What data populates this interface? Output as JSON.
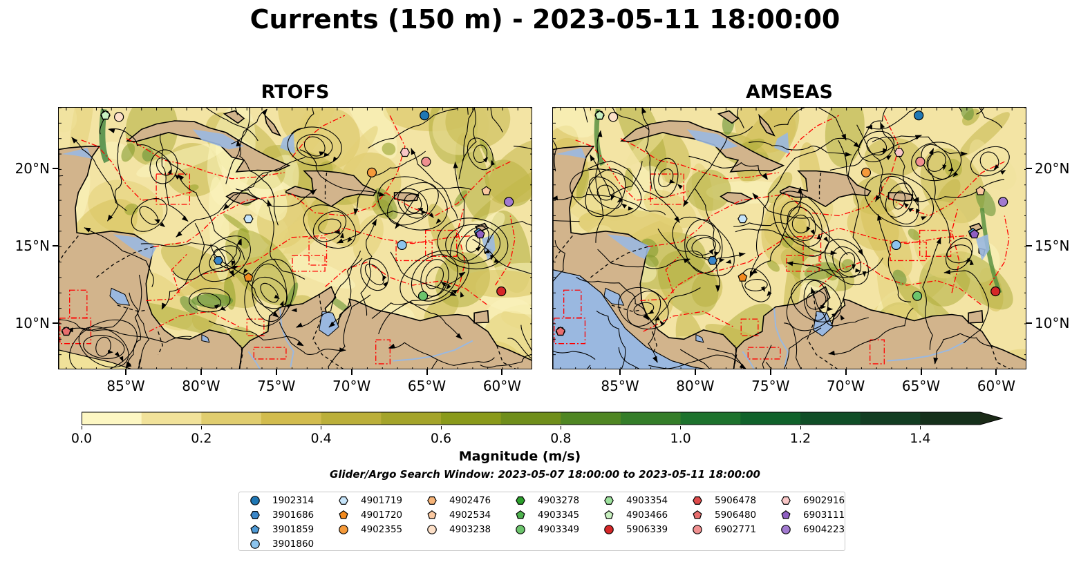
{
  "title": "Currents (150 m) - 2023-05-11 18:00:00",
  "panels": [
    {
      "title": "RTOFS"
    },
    {
      "title": "AMSEAS"
    }
  ],
  "map_extent": {
    "lon": [
      -89.5,
      -58.0
    ],
    "lat": [
      7.0,
      24.0
    ]
  },
  "x_ticks": [
    "85°W",
    "80°W",
    "75°W",
    "70°W",
    "65°W",
    "60°W"
  ],
  "x_tick_lons": [
    -85,
    -80,
    -75,
    -70,
    -65,
    -60
  ],
  "y_ticks": [
    "20°N",
    "15°N",
    "10°N"
  ],
  "y_tick_lats": [
    20,
    15,
    10
  ],
  "colorbar": {
    "title": "Magnitude (m/s)",
    "range": [
      0.0,
      1.5
    ],
    "step": 0.1,
    "extend": "max",
    "labels": [
      "0.0",
      "0.2",
      "0.4",
      "0.6",
      "0.8",
      "1.0",
      "1.2",
      "1.4"
    ],
    "label_values": [
      0.0,
      0.2,
      0.4,
      0.6,
      0.8,
      1.0,
      1.2,
      1.4
    ],
    "colors": [
      "#fdf7c3",
      "#f1e29a",
      "#e0cd6f",
      "#d2bc4e",
      "#bbaf3a",
      "#a4a42a",
      "#8a9a1b",
      "#6f8e1b",
      "#4f8623",
      "#347d29",
      "#1d722d",
      "#10622b",
      "#104e27",
      "#123d22",
      "#15301b",
      "#1b2a17"
    ]
  },
  "colors": {
    "ocean_low": "#fdf7c3",
    "land": "#d2b48c",
    "lake": "#9ab8e0",
    "track": "#ff0000"
  },
  "search_window": "Glider/Argo Search Window: 2023-05-07 18:00:00 to 2023-05-11 18:00:00",
  "legend": [
    {
      "id": "1902314",
      "marker": "circle",
      "color": "#1f77b4"
    },
    {
      "id": "3901686",
      "marker": "hexagon",
      "color": "#3a86c8"
    },
    {
      "id": "3901859",
      "marker": "pentagon",
      "color": "#4e9ad6"
    },
    {
      "id": "3901860",
      "marker": "circle",
      "color": "#8cc4ee"
    },
    {
      "id": "4901719",
      "marker": "hexagon",
      "color": "#c6e5fb"
    },
    {
      "id": "4901720",
      "marker": "pentagon",
      "color": "#f28a1e"
    },
    {
      "id": "4902355",
      "marker": "circle",
      "color": "#f59a3a"
    },
    {
      "id": "4902476",
      "marker": "hexagon",
      "color": "#f7b478"
    },
    {
      "id": "4902534",
      "marker": "pentagon",
      "color": "#fac8a0"
    },
    {
      "id": "4903238",
      "marker": "circle",
      "color": "#fde0c8"
    },
    {
      "id": "4903278",
      "marker": "hexagon",
      "color": "#2ca02c"
    },
    {
      "id": "4903345",
      "marker": "pentagon",
      "color": "#4fb34f"
    },
    {
      "id": "4903349",
      "marker": "circle",
      "color": "#6cc46c"
    },
    {
      "id": "4903354",
      "marker": "hexagon",
      "color": "#9ee29e"
    },
    {
      "id": "4903466",
      "marker": "pentagon",
      "color": "#c8f0c0"
    },
    {
      "id": "5906339",
      "marker": "circle",
      "color": "#d62728"
    },
    {
      "id": "5906478",
      "marker": "hexagon",
      "color": "#df4b4b"
    },
    {
      "id": "5906480",
      "marker": "pentagon",
      "color": "#e86e6e"
    },
    {
      "id": "6902771",
      "marker": "circle",
      "color": "#f09090"
    },
    {
      "id": "6902916",
      "marker": "hexagon",
      "color": "#f8c6c6"
    },
    {
      "id": "6903111",
      "marker": "pentagon",
      "color": "#8f5fc2"
    },
    {
      "id": "6904223",
      "marker": "circle",
      "color": "#a27ad0"
    }
  ],
  "floats": [
    {
      "id": "1902314",
      "lon": -65.2,
      "lat": 23.5
    },
    {
      "id": "3901686",
      "lon": -78.9,
      "lat": 14.1
    },
    {
      "id": "3901859",
      "lon": -61.6,
      "lat": 15.9
    },
    {
      "id": "3901860",
      "lon": -66.7,
      "lat": 15.1
    },
    {
      "id": "4901719",
      "lon": -76.9,
      "lat": 16.8
    },
    {
      "id": "4901720",
      "lon": -76.9,
      "lat": 13.0
    },
    {
      "id": "4902355",
      "lon": -68.7,
      "lat": 19.8
    },
    {
      "id": "4902476",
      "lon": -59.6,
      "lat": 17.9
    },
    {
      "id": "4902534",
      "lon": -61.1,
      "lat": 18.6
    },
    {
      "id": "4903238",
      "lon": -85.5,
      "lat": 23.4
    },
    {
      "id": "4903278",
      "lon": -86.4,
      "lat": 23.5
    },
    {
      "id": "4903345",
      "lon": -86.4,
      "lat": 23.5
    },
    {
      "id": "4903349",
      "lon": -65.3,
      "lat": 11.8
    },
    {
      "id": "4903354",
      "lon": -86.4,
      "lat": 23.5
    },
    {
      "id": "4903466",
      "lon": -86.4,
      "lat": 23.5
    },
    {
      "id": "5906339",
      "lon": -60.1,
      "lat": 12.1
    },
    {
      "id": "5906478",
      "lon": -89.0,
      "lat": 9.5
    },
    {
      "id": "5906480",
      "lon": -89.0,
      "lat": 9.5
    },
    {
      "id": "6902771",
      "lon": -65.1,
      "lat": 20.5
    },
    {
      "id": "6902916",
      "lon": -66.5,
      "lat": 21.1
    },
    {
      "id": "6903111",
      "lon": -61.5,
      "lat": 15.8
    },
    {
      "id": "6904223",
      "lon": -59.6,
      "lat": 17.9
    }
  ]
}
